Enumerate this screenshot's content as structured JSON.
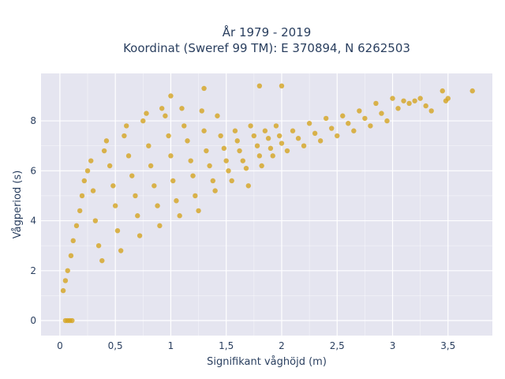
{
  "chart_data": {
    "type": "scatter",
    "title_line1": "År 1979 - 2019",
    "title_line2": "Koordinat (Sweref 99 TM): E 370894, N 6262503",
    "xlabel": "Signifikant våghöjd (m)",
    "ylabel": "Vågperiod (s)",
    "xlim": [
      -0.17,
      3.9
    ],
    "ylim": [
      -0.6,
      9.9
    ],
    "xticks": [
      0,
      0.5,
      1,
      1.5,
      2,
      2.5,
      3,
      3.5
    ],
    "xtick_labels": [
      "0",
      "0,5",
      "1",
      "1,5",
      "2",
      "2,5",
      "3",
      "3,5"
    ],
    "yticks": [
      0,
      2,
      4,
      6,
      8
    ],
    "ytick_labels": [
      "0",
      "2",
      "4",
      "6",
      "8"
    ],
    "grid": true,
    "colors": {
      "marker": "#D4A420",
      "plot_bg": "#E5E5F0",
      "grid": "#ffffff",
      "text": "#2a3f5f"
    },
    "points": [
      [
        0.03,
        1.2
      ],
      [
        0.05,
        1.6
      ],
      [
        0.07,
        2.0
      ],
      [
        0.1,
        2.6
      ],
      [
        0.12,
        3.2
      ],
      [
        0.15,
        3.8
      ],
      [
        0.18,
        4.4
      ],
      [
        0.2,
        5.0
      ],
      [
        0.22,
        5.6
      ],
      [
        0.25,
        6.0
      ],
      [
        0.28,
        6.4
      ],
      [
        0.3,
        5.2
      ],
      [
        0.32,
        4.0
      ],
      [
        0.35,
        3.0
      ],
      [
        0.38,
        2.4
      ],
      [
        0.4,
        6.8
      ],
      [
        0.42,
        7.2
      ],
      [
        0.45,
        6.2
      ],
      [
        0.48,
        5.4
      ],
      [
        0.5,
        4.6
      ],
      [
        0.52,
        3.6
      ],
      [
        0.55,
        2.8
      ],
      [
        0.58,
        7.4
      ],
      [
        0.6,
        7.8
      ],
      [
        0.62,
        6.6
      ],
      [
        0.65,
        5.8
      ],
      [
        0.68,
        5.0
      ],
      [
        0.7,
        4.2
      ],
      [
        0.72,
        3.4
      ],
      [
        0.75,
        8.0
      ],
      [
        0.78,
        8.3
      ],
      [
        0.8,
        7.0
      ],
      [
        0.82,
        6.2
      ],
      [
        0.85,
        5.4
      ],
      [
        0.88,
        4.6
      ],
      [
        0.9,
        3.8
      ],
      [
        0.92,
        8.5
      ],
      [
        0.95,
        8.2
      ],
      [
        0.98,
        7.4
      ],
      [
        1.0,
        6.6
      ],
      [
        1.02,
        5.6
      ],
      [
        1.05,
        4.8
      ],
      [
        1.08,
        4.2
      ],
      [
        1.1,
        8.5
      ],
      [
        1.12,
        7.8
      ],
      [
        1.15,
        7.2
      ],
      [
        1.18,
        6.4
      ],
      [
        1.2,
        5.8
      ],
      [
        1.22,
        5.0
      ],
      [
        1.25,
        4.4
      ],
      [
        1.28,
        8.4
      ],
      [
        1.3,
        7.6
      ],
      [
        1.32,
        6.8
      ],
      [
        1.35,
        6.2
      ],
      [
        1.38,
        5.6
      ],
      [
        1.4,
        5.2
      ],
      [
        1.42,
        8.2
      ],
      [
        1.45,
        7.4
      ],
      [
        1.48,
        6.9
      ],
      [
        1.5,
        6.4
      ],
      [
        1.52,
        6.0
      ],
      [
        1.55,
        5.6
      ],
      [
        1.58,
        7.6
      ],
      [
        1.6,
        7.2
      ],
      [
        1.62,
        6.8
      ],
      [
        1.65,
        6.4
      ],
      [
        1.68,
        6.1
      ],
      [
        1.7,
        5.4
      ],
      [
        1.72,
        7.8
      ],
      [
        1.75,
        7.4
      ],
      [
        1.78,
        7.0
      ],
      [
        1.8,
        6.6
      ],
      [
        1.82,
        6.2
      ],
      [
        1.85,
        7.6
      ],
      [
        1.88,
        7.3
      ],
      [
        1.9,
        6.9
      ],
      [
        1.92,
        6.6
      ],
      [
        1.95,
        7.8
      ],
      [
        1.98,
        7.4
      ],
      [
        2.0,
        7.1
      ],
      [
        2.05,
        6.8
      ],
      [
        2.1,
        7.6
      ],
      [
        2.15,
        7.3
      ],
      [
        2.2,
        7.0
      ],
      [
        2.25,
        7.9
      ],
      [
        2.3,
        7.5
      ],
      [
        2.35,
        7.2
      ],
      [
        2.4,
        8.1
      ],
      [
        2.45,
        7.7
      ],
      [
        2.5,
        7.4
      ],
      [
        2.55,
        8.2
      ],
      [
        2.6,
        7.9
      ],
      [
        2.65,
        7.6
      ],
      [
        2.7,
        8.4
      ],
      [
        2.75,
        8.1
      ],
      [
        2.8,
        7.8
      ],
      [
        2.85,
        8.7
      ],
      [
        2.9,
        8.3
      ],
      [
        2.95,
        8.0
      ],
      [
        3.0,
        8.9
      ],
      [
        3.05,
        8.5
      ],
      [
        3.1,
        8.8
      ],
      [
        3.15,
        8.7
      ],
      [
        3.2,
        8.8
      ],
      [
        3.25,
        8.9
      ],
      [
        3.3,
        8.6
      ],
      [
        3.35,
        8.4
      ],
      [
        3.45,
        9.2
      ],
      [
        3.48,
        8.8
      ],
      [
        3.5,
        8.9
      ],
      [
        3.72,
        9.2
      ],
      [
        1.0,
        9.0
      ],
      [
        1.3,
        9.3
      ],
      [
        1.8,
        9.4
      ],
      [
        2.0,
        9.4
      ],
      [
        0.05,
        0.0
      ],
      [
        0.07,
        0.0
      ],
      [
        0.09,
        0.0
      ],
      [
        0.11,
        0.0
      ]
    ]
  }
}
